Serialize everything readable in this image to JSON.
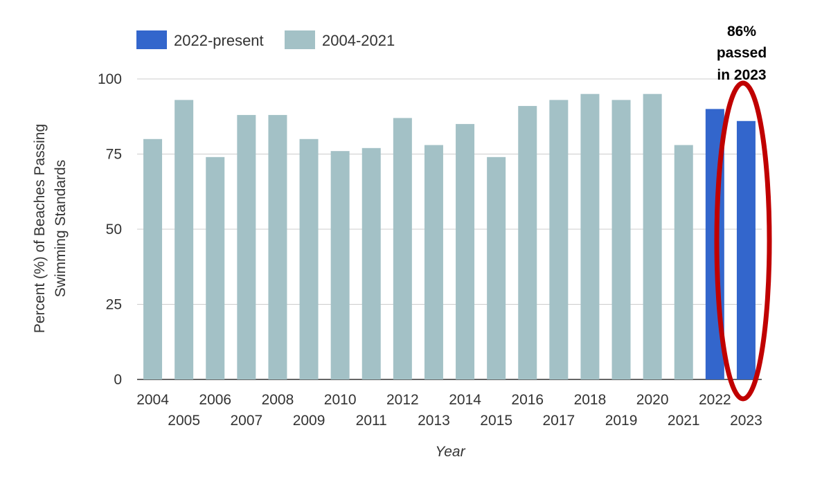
{
  "chart_data": {
    "type": "bar",
    "xlabel": "Year",
    "ylabel_lines": [
      "Percent (%) of Beaches Passing",
      "Swimming Standards"
    ],
    "ylim": [
      0,
      100
    ],
    "yticks": [
      0,
      25,
      50,
      75,
      100
    ],
    "grid": true,
    "legend_position": "top-left",
    "categories": [
      "2004",
      "2005",
      "2006",
      "2007",
      "2008",
      "2009",
      "2010",
      "2011",
      "2012",
      "2013",
      "2014",
      "2015",
      "2016",
      "2017",
      "2018",
      "2019",
      "2020",
      "2021",
      "2022",
      "2023"
    ],
    "values": [
      80,
      93,
      74,
      88,
      88,
      80,
      76,
      77,
      87,
      78,
      85,
      74,
      91,
      93,
      95,
      93,
      95,
      78,
      90,
      86
    ],
    "series_index": [
      1,
      1,
      1,
      1,
      1,
      1,
      1,
      1,
      1,
      1,
      1,
      1,
      1,
      1,
      1,
      1,
      1,
      1,
      0,
      0
    ],
    "series": [
      {
        "name": "2022-present",
        "color": "#3366cc"
      },
      {
        "name": "2004-2021",
        "color": "#a3c1c6"
      }
    ],
    "annotation": {
      "lines": [
        "86%",
        "passed",
        "in 2023"
      ],
      "highlight_color": "#c00000"
    }
  }
}
